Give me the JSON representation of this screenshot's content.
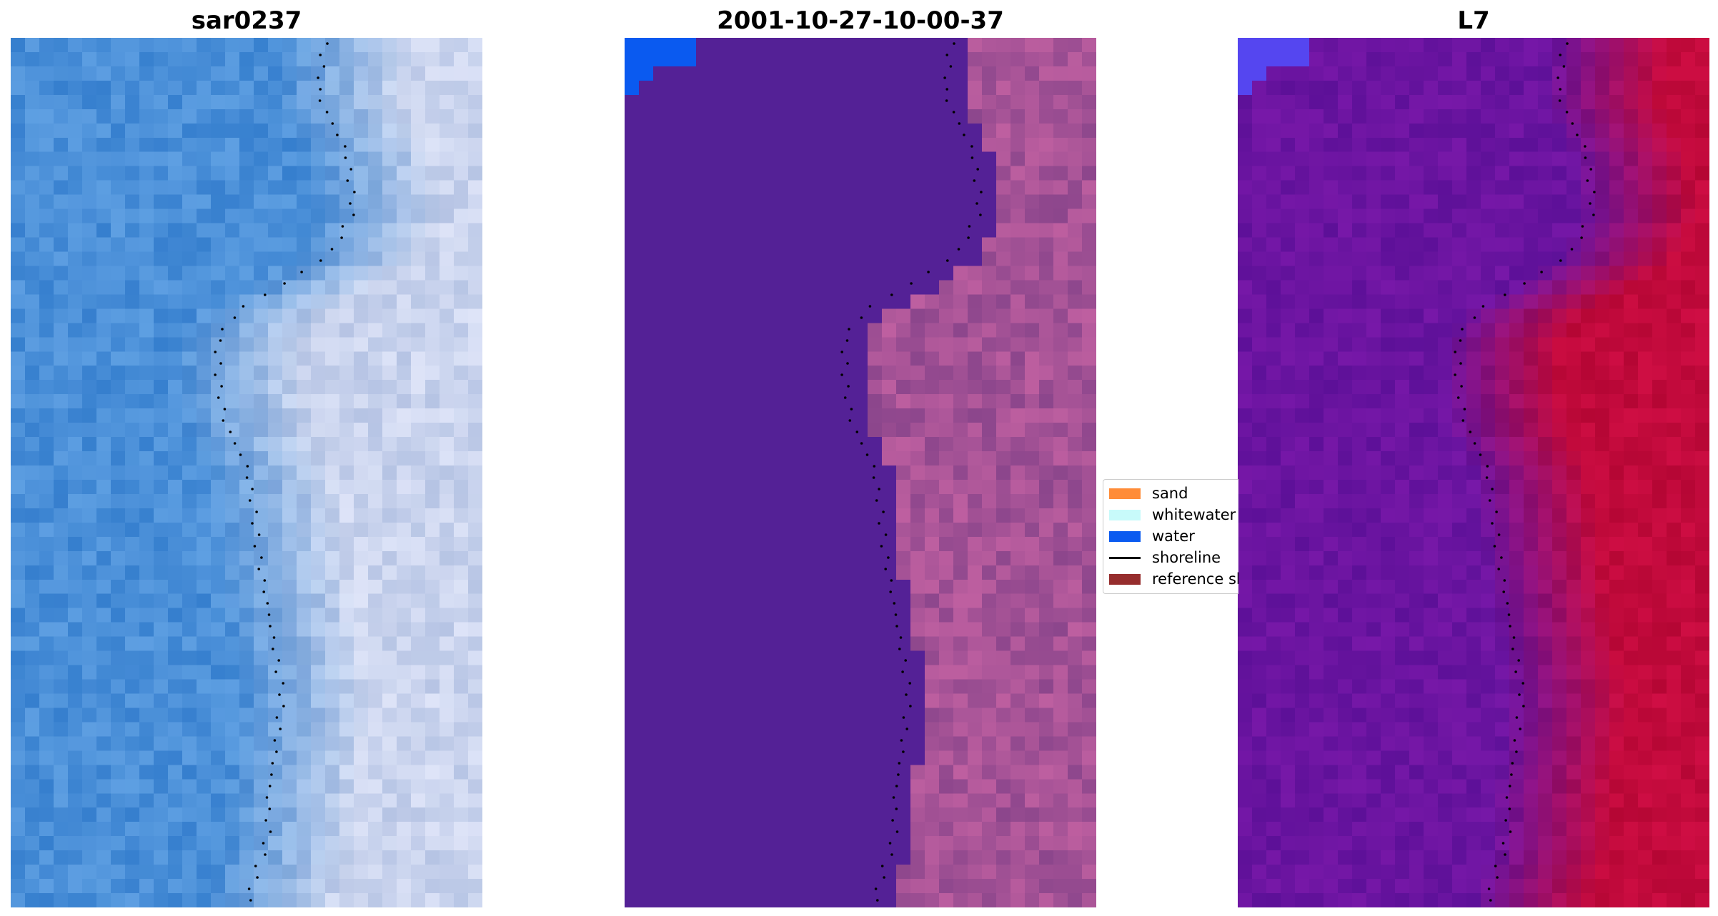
{
  "panels": [
    {
      "title": "sar0237",
      "kind": "rgb"
    },
    {
      "title": "2001-10-27-10-00-37",
      "kind": "classified"
    },
    {
      "title": "L7",
      "kind": "index"
    }
  ],
  "legend": {
    "items": [
      {
        "label": "sand",
        "type": "patch",
        "color": "#ff8c38"
      },
      {
        "label": "whitewater",
        "type": "patch",
        "color": "#c8fafa"
      },
      {
        "label": "water",
        "type": "patch",
        "color": "#0a5af0"
      },
      {
        "label": "shoreline",
        "type": "line",
        "color": "#000000"
      },
      {
        "label": "reference shoreline",
        "type": "patch",
        "color": "#962d2d"
      }
    ]
  },
  "colors": {
    "water_class": "#542196",
    "water_corner": "#0a5af0",
    "index_water": "#6a14a0",
    "index_land": "#c20a3c",
    "rgb_water": "#4a8fd8",
    "rgb_surf": "#d8dcf0"
  }
}
